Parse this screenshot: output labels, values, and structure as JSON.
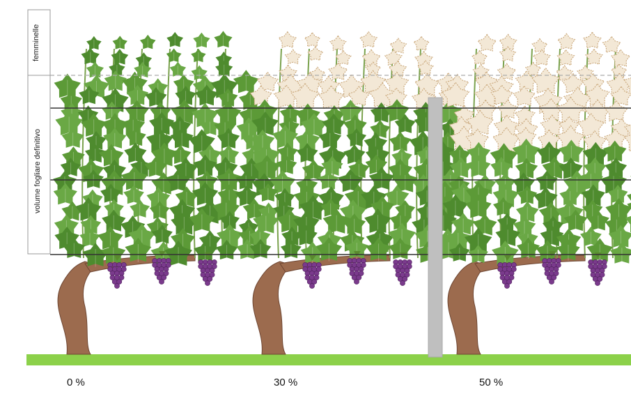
{
  "zones": {
    "upper_label": "femminelle",
    "lower_label": "volume fogliare definitivo"
  },
  "plants": [
    {
      "label": "0 %",
      "pruned_fraction": 0.0
    },
    {
      "label": "30 %",
      "pruned_fraction": 0.3
    },
    {
      "label": "50 %",
      "pruned_fraction": 0.5
    }
  ],
  "colors": {
    "leaf_dark": "#4e8b2e",
    "leaf_light": "#6aa845",
    "leaf_mid": "#5c9a37",
    "removed_leaf": "#c9a77a",
    "trunk": "#9c6b4e",
    "grapes": "#7a3a8c",
    "ground": "#8cd14a",
    "post": "#bfbfbf",
    "wire": "#333333"
  }
}
